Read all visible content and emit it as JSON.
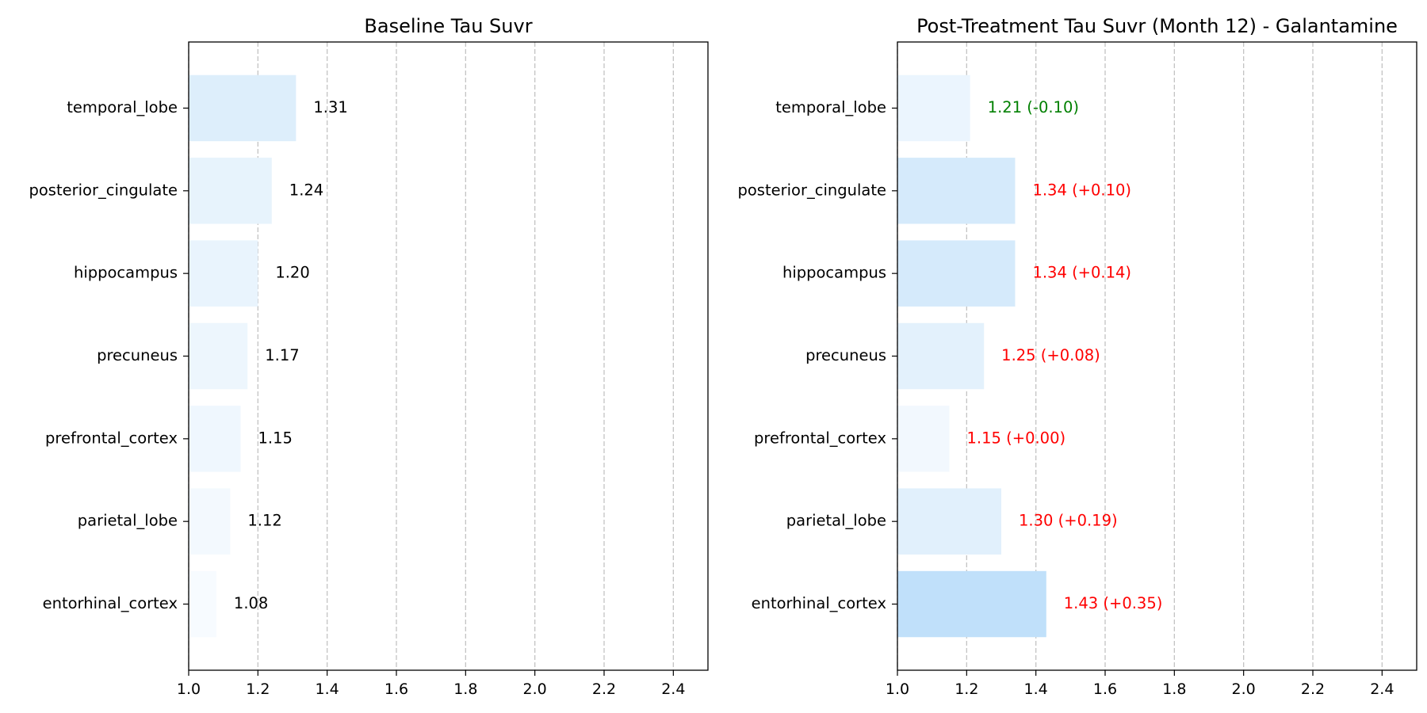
{
  "chart_data": [
    {
      "type": "bar",
      "orientation": "horizontal",
      "title": "Baseline Tau Suvr",
      "xlabel": "",
      "ylabel": "",
      "xlim": [
        1.0,
        2.5
      ],
      "xticks": [
        "1.0",
        "1.2",
        "1.4",
        "1.6",
        "1.8",
        "2.0",
        "2.2",
        "2.4"
      ],
      "grid": "x-dashed",
      "categories": [
        "temporal_lobe",
        "posterior_cingulate",
        "hippocampus",
        "precuneus",
        "prefrontal_cortex",
        "parietal_lobe",
        "entorhinal_cortex"
      ],
      "values": [
        1.31,
        1.24,
        1.2,
        1.17,
        1.15,
        1.12,
        1.08
      ],
      "data_labels": [
        "1.31",
        "1.24",
        "1.20",
        "1.17",
        "1.15",
        "1.12",
        "1.08"
      ],
      "bar_colors": [
        "#ddeefb",
        "#e7f3fc",
        "#e9f4fd",
        "#edf6fd",
        "#eff7fe",
        "#f3f9fe",
        "#f7fbff"
      ],
      "label_colors": [
        "#000000",
        "#000000",
        "#000000",
        "#000000",
        "#000000",
        "#000000",
        "#000000"
      ]
    },
    {
      "type": "bar",
      "orientation": "horizontal",
      "title": "Post-Treatment Tau Suvr (Month 12) - Galantamine",
      "xlabel": "",
      "ylabel": "",
      "xlim": [
        1.0,
        2.5
      ],
      "xticks": [
        "1.0",
        "1.2",
        "1.4",
        "1.6",
        "1.8",
        "2.0",
        "2.2",
        "2.4"
      ],
      "grid": "x-dashed",
      "categories": [
        "temporal_lobe",
        "posterior_cingulate",
        "hippocampus",
        "precuneus",
        "prefrontal_cortex",
        "parietal_lobe",
        "entorhinal_cortex"
      ],
      "values": [
        1.21,
        1.34,
        1.34,
        1.25,
        1.15,
        1.3,
        1.43
      ],
      "changes": [
        -0.1,
        0.1,
        0.14,
        0.08,
        0.0,
        0.19,
        0.35
      ],
      "data_labels": [
        "1.21 (-0.10)",
        "1.34 (+0.10)",
        "1.34 (+0.14)",
        "1.25 (+0.08)",
        "1.15 (+0.00)",
        "1.30 (+0.19)",
        "1.43 (+0.35)"
      ],
      "bar_colors": [
        "#ebf5fe",
        "#d5eafb",
        "#d5eafb",
        "#e3f1fc",
        "#f2f8fe",
        "#e1f0fc",
        "#c0e0fa"
      ],
      "label_colors": [
        "#008000",
        "#ff0000",
        "#ff0000",
        "#ff0000",
        "#ff0000",
        "#ff0000",
        "#ff0000"
      ]
    }
  ],
  "colors": {
    "axis": "#000000",
    "grid": "#c4c4c4",
    "increase": "#ff0000",
    "decrease": "#008000"
  }
}
